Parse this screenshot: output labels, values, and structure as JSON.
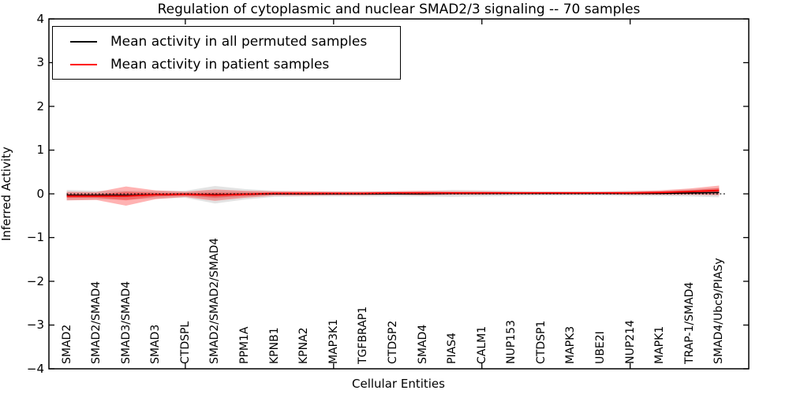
{
  "chart_data": {
    "type": "line",
    "title": "Regulation of cytoplasmic and nuclear SMAD2/3 signaling -- 70 samples",
    "xlabel": "Cellular Entities",
    "ylabel": "Inferred Activity",
    "ylim": [
      -4,
      4
    ],
    "yticks": [
      4,
      3,
      2,
      1,
      0,
      -1,
      -2,
      -3,
      -4
    ],
    "xlim": [
      0.4,
      24.0
    ],
    "xticks": [
      5,
      10,
      15,
      20
    ],
    "zero_line": 0,
    "grid": false,
    "legend_position": "upper left",
    "entities": [
      "SMAD2",
      "SMAD2/SMAD4",
      "SMAD3/SMAD4",
      "SMAD3",
      "CTDSPL",
      "SMAD2/SMAD2/SMAD4",
      "PPM1A",
      "KPNB1",
      "KPNA2",
      "MAP3K1",
      "TGFBRAP1",
      "CTDSP2",
      "SMAD4",
      "PIAS4",
      "CALM1",
      "NUP153",
      "CTDSP1",
      "MAPK3",
      "UBE2I",
      "NUP214",
      "MAPK1",
      "TRAP-1/SMAD4",
      "SMAD4/Ubc9/PIASy"
    ],
    "series": [
      {
        "name": "Mean activity in all permuted samples",
        "color": "#000000",
        "band_color": "#999999",
        "means": [
          -0.03,
          -0.03,
          -0.03,
          -0.02,
          -0.01,
          -0.02,
          -0.01,
          0.0,
          0.0,
          0.0,
          0.0,
          0.0,
          0.0,
          0.01,
          0.01,
          0.01,
          0.01,
          0.01,
          0.01,
          0.01,
          0.01,
          0.02,
          0.03
        ],
        "stds": [
          0.12,
          0.1,
          0.1,
          0.09,
          0.08,
          0.2,
          0.12,
          0.07,
          0.06,
          0.06,
          0.06,
          0.06,
          0.06,
          0.08,
          0.07,
          0.06,
          0.05,
          0.05,
          0.05,
          0.06,
          0.06,
          0.08,
          0.11
        ]
      },
      {
        "name": "Mean activity in patient samples",
        "color": "#ff0000",
        "band_color": "#ff0000",
        "means": [
          -0.05,
          -0.05,
          -0.05,
          -0.02,
          -0.01,
          -0.03,
          -0.01,
          0.01,
          0.01,
          0.01,
          0.01,
          0.02,
          0.02,
          0.02,
          0.02,
          0.02,
          0.02,
          0.02,
          0.02,
          0.02,
          0.03,
          0.05,
          0.08
        ],
        "stds": [
          0.1,
          0.09,
          0.22,
          0.1,
          0.06,
          0.13,
          0.08,
          0.05,
          0.05,
          0.04,
          0.04,
          0.04,
          0.05,
          0.04,
          0.04,
          0.03,
          0.03,
          0.03,
          0.03,
          0.04,
          0.05,
          0.07,
          0.11
        ]
      }
    ]
  }
}
